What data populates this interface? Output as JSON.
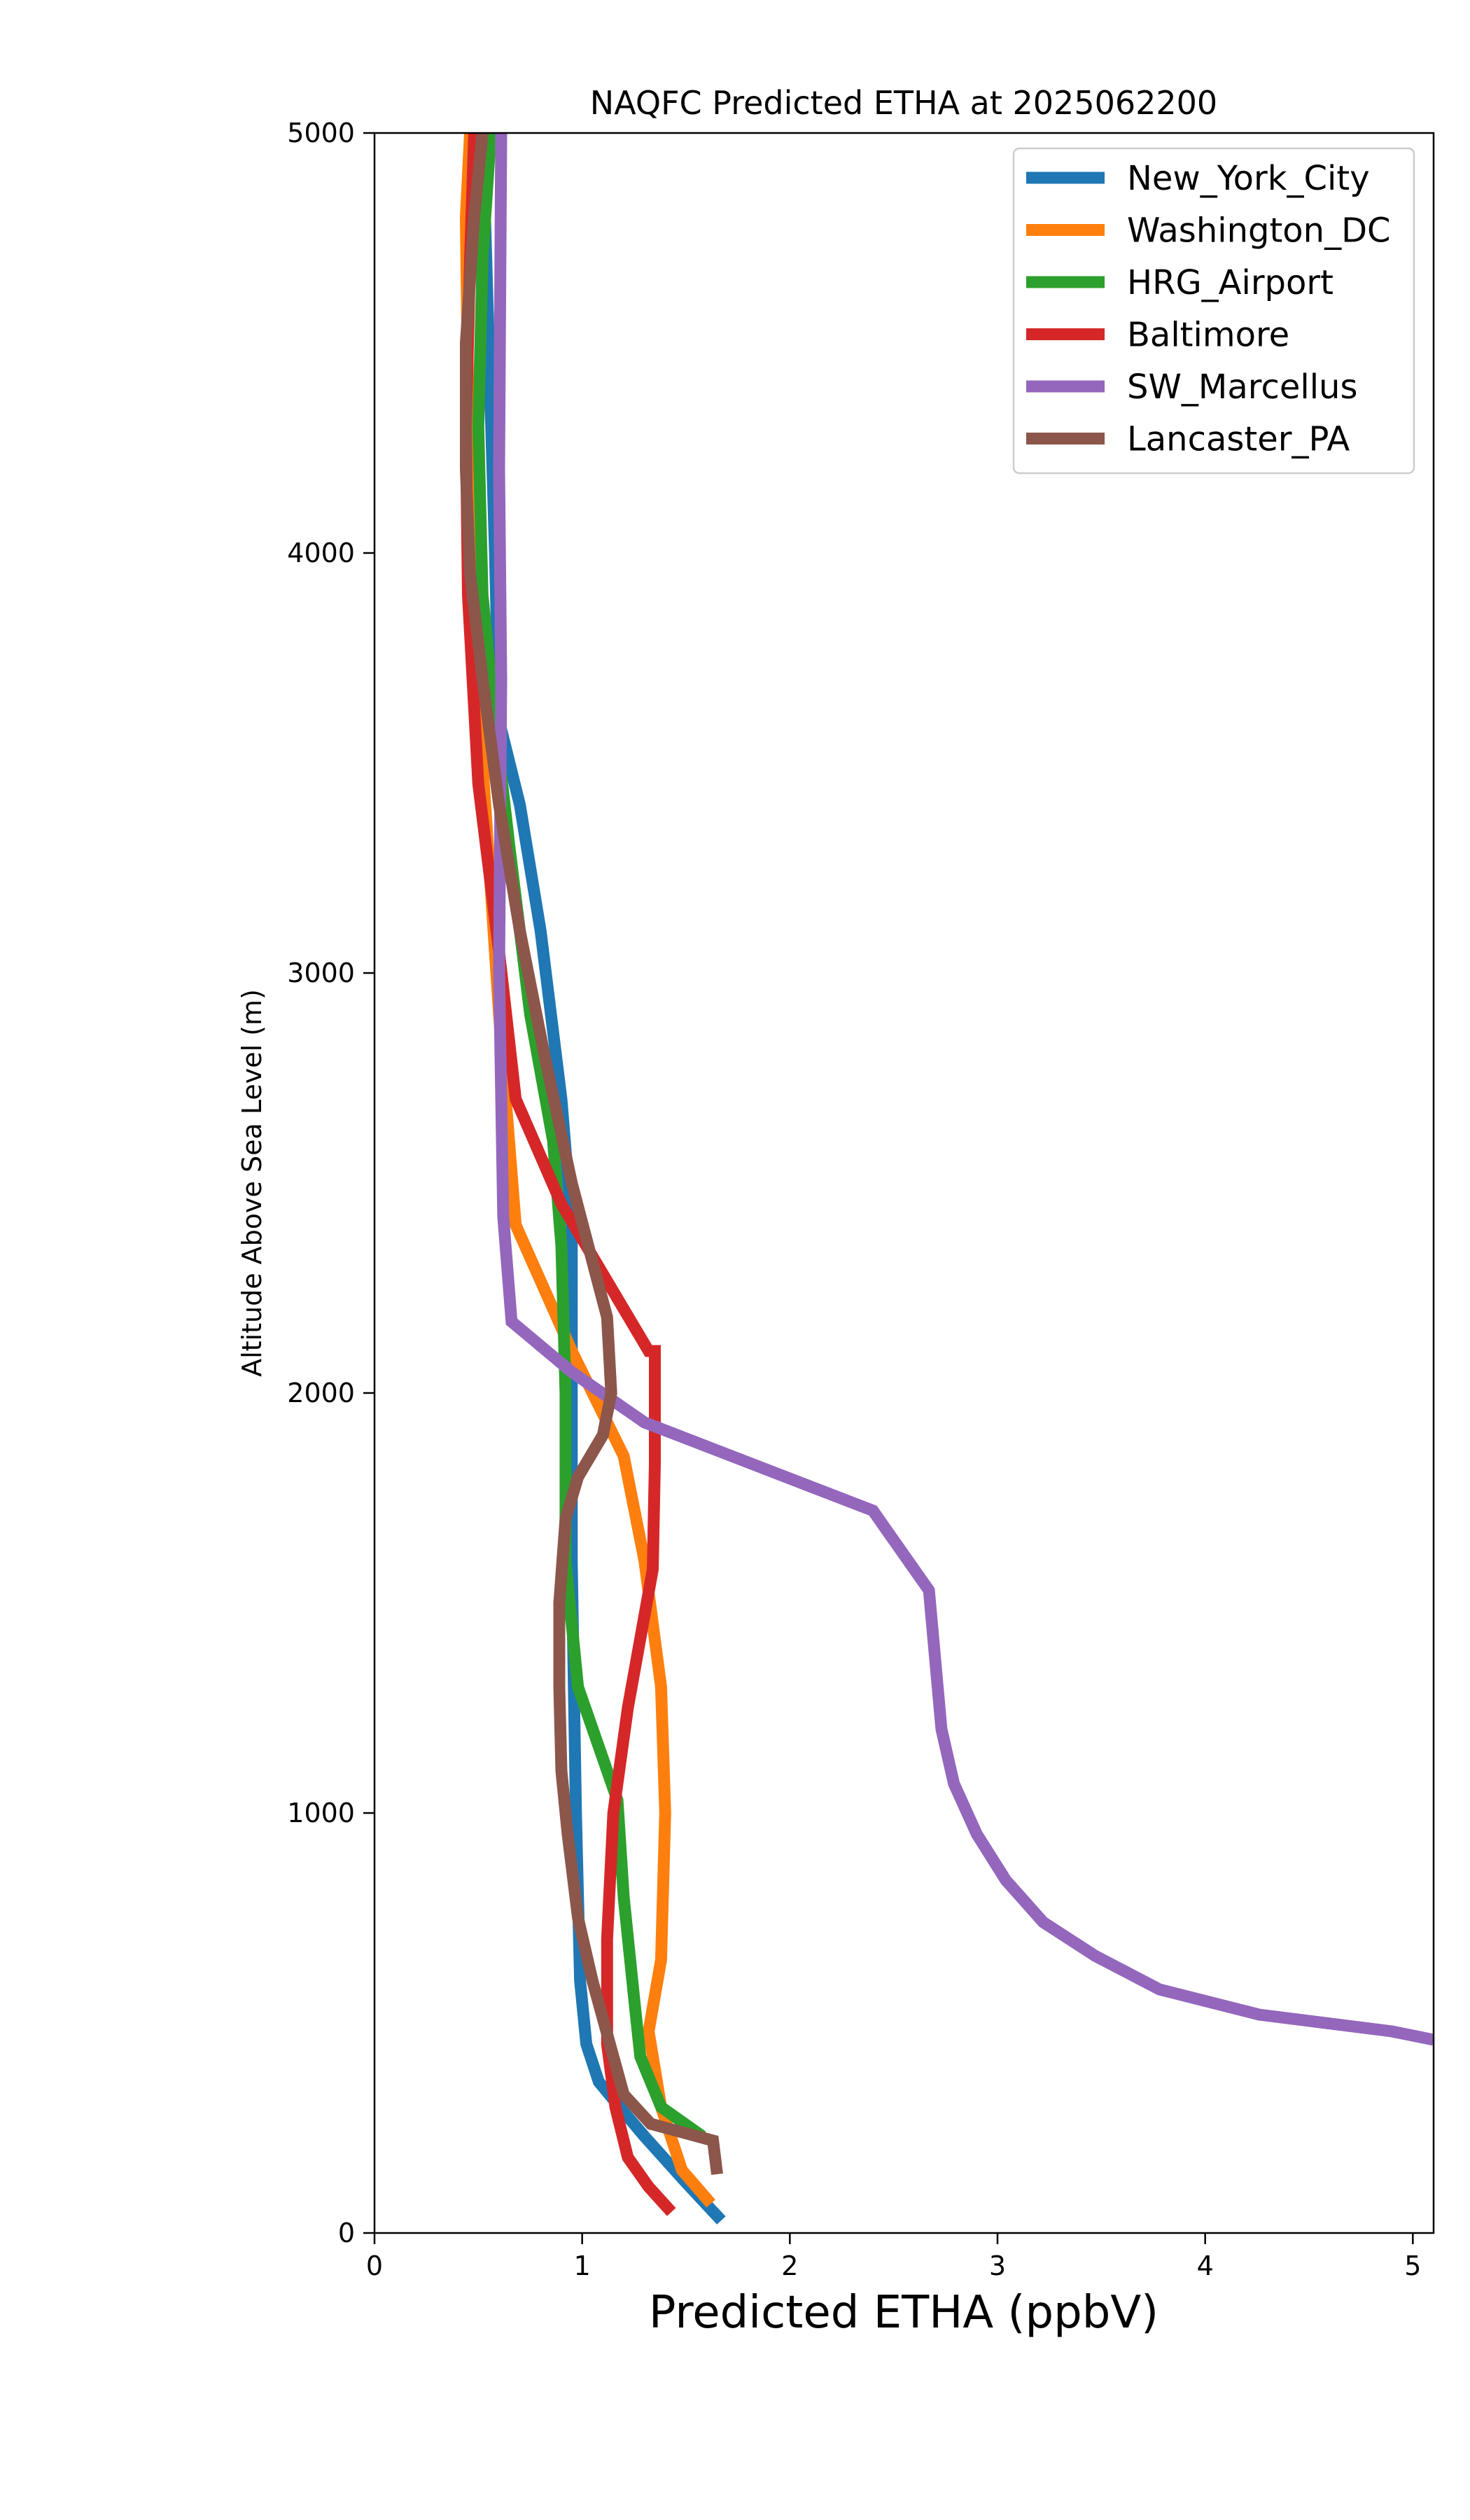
{
  "chart_data": {
    "type": "line",
    "title": "NAQFC Predicted ETHA at 2025062200",
    "xlabel": "Predicted ETHA (ppbV)",
    "ylabel": "Altitude Above Sea Level (m)",
    "xlim": [
      0,
      5.1
    ],
    "ylim": [
      0,
      5000
    ],
    "xticks": [
      0,
      1,
      2,
      3,
      4,
      5
    ],
    "yticks": [
      0,
      1000,
      2000,
      3000,
      4000,
      5000
    ],
    "grid": false,
    "legend_position": "top-right",
    "series": [
      {
        "name": "New_York_City",
        "color": "#1f77b4",
        "x": [
          1.67,
          1.5,
          1.3,
          1.18,
          1.08,
          1.02,
          0.99,
          0.98,
          0.97,
          0.96,
          0.95,
          0.95,
          0.95,
          0.9,
          0.8,
          0.7,
          0.6,
          0.58,
          0.55,
          0.52
        ],
        "y": [
          30,
          120,
          230,
          300,
          360,
          450,
          600,
          800,
          1000,
          1300,
          1600,
          2000,
          2400,
          2700,
          3100,
          3400,
          3600,
          4000,
          4500,
          5000
        ]
      },
      {
        "name": "Washington_DC",
        "color": "#ff7f0e",
        "x": [
          1.62,
          1.48,
          1.38,
          1.32,
          1.38,
          1.4,
          1.38,
          1.3,
          1.2,
          0.95,
          0.68,
          0.6,
          0.56,
          0.52,
          0.48,
          0.45,
          0.44,
          0.46
        ],
        "y": [
          70,
          150,
          300,
          480,
          650,
          1000,
          1300,
          1600,
          1850,
          2100,
          2400,
          2900,
          3200,
          3500,
          3900,
          4400,
          4800,
          5000
        ]
      },
      {
        "name": "HRG_Airport",
        "color": "#2ca02c",
        "x": [
          1.58,
          1.38,
          1.28,
          1.25,
          1.2,
          1.17,
          0.98,
          0.92,
          0.92,
          0.9,
          0.86,
          0.75,
          0.65,
          0.58,
          0.52,
          0.5,
          0.52,
          0.56
        ],
        "y": [
          230,
          300,
          420,
          560,
          800,
          1030,
          1300,
          1600,
          2000,
          2350,
          2600,
          2900,
          3300,
          3600,
          3900,
          4300,
          4700,
          5000
        ]
      },
      {
        "name": "Baltimore",
        "color": "#d62728",
        "x": [
          1.43,
          1.32,
          1.22,
          1.16,
          1.12,
          1.12,
          1.15,
          1.22,
          1.34,
          1.35,
          1.35,
          1.32,
          0.9,
          0.68,
          0.6,
          0.5,
          0.45,
          0.44,
          0.46,
          0.48
        ],
        "y": [
          50,
          110,
          180,
          300,
          450,
          700,
          1000,
          1250,
          1580,
          1830,
          2100,
          2100,
          2450,
          2700,
          3050,
          3450,
          3900,
          4300,
          4700,
          5000
        ]
      },
      {
        "name": "SW_Marcellus",
        "color": "#9467bd",
        "x": [
          5.1,
          4.9,
          4.26,
          3.78,
          3.47,
          3.22,
          3.04,
          2.9,
          2.79,
          2.73,
          2.67,
          2.4,
          1.3,
          0.95,
          0.66,
          0.62,
          0.6,
          0.61,
          0.6,
          0.61
        ],
        "y": [
          460,
          480,
          520,
          580,
          660,
          740,
          840,
          950,
          1070,
          1200,
          1530,
          1720,
          1930,
          2050,
          2170,
          2420,
          3000,
          3700,
          4200,
          5000
        ]
      },
      {
        "name": "Lancaster_PA",
        "color": "#8c564b",
        "x": [
          1.65,
          1.63,
          1.33,
          1.2,
          1.15,
          1.05,
          0.98,
          0.93,
          0.9,
          0.89,
          0.89,
          0.92,
          0.98,
          1.1,
          1.14,
          1.12,
          0.95,
          0.82,
          0.7,
          0.6,
          0.52,
          0.46,
          0.44,
          0.44,
          0.48,
          0.52
        ],
        "y": [
          140,
          220,
          260,
          330,
          420,
          600,
          750,
          950,
          1100,
          1300,
          1500,
          1700,
          1800,
          1900,
          2000,
          2180,
          2500,
          2800,
          3100,
          3400,
          3700,
          3950,
          4200,
          4500,
          4800,
          5000
        ]
      }
    ]
  }
}
